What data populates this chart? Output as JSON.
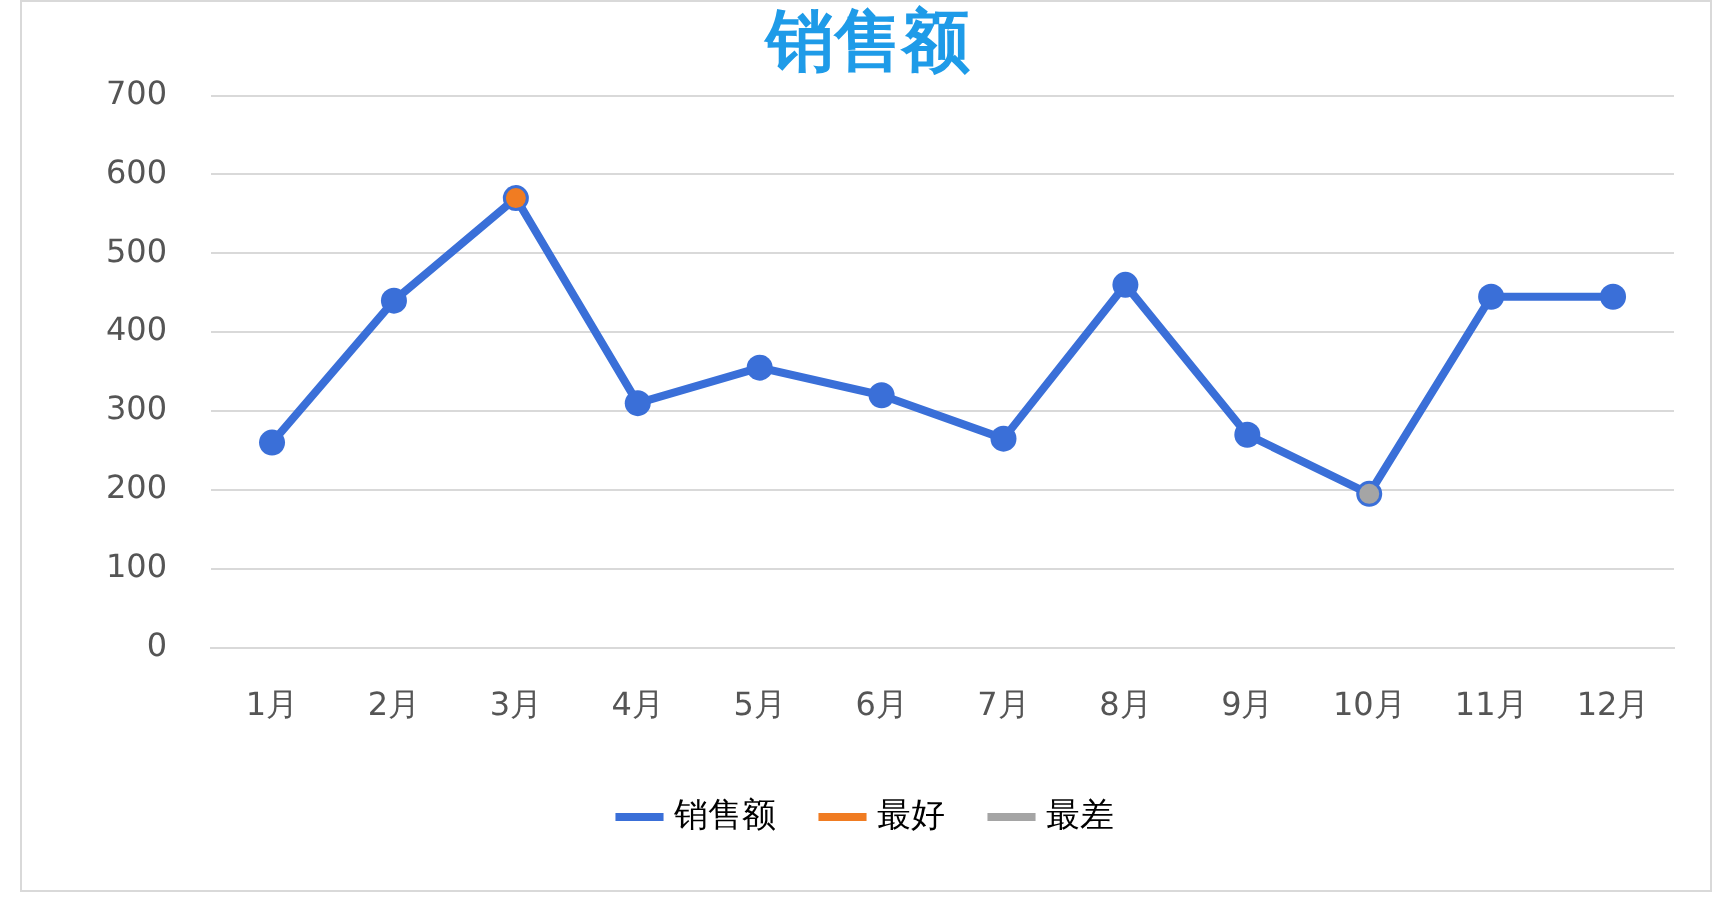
{
  "chart_data": {
    "type": "line",
    "title": "销售额",
    "categories": [
      "1月",
      "2月",
      "3月",
      "4月",
      "5月",
      "6月",
      "7月",
      "8月",
      "9月",
      "10月",
      "11月",
      "12月"
    ],
    "series": [
      {
        "name": "销售额",
        "color": "#3a6fd8",
        "values": [
          260,
          440,
          570,
          310,
          355,
          320,
          265,
          460,
          270,
          195,
          445,
          445
        ]
      },
      {
        "name": "最好",
        "color": "#f07c22",
        "values": [
          null,
          null,
          570,
          null,
          null,
          null,
          null,
          null,
          null,
          null,
          null,
          null
        ]
      },
      {
        "name": "最差",
        "color": "#a5a5a5",
        "values": [
          null,
          null,
          null,
          null,
          null,
          null,
          null,
          null,
          null,
          195,
          null,
          null
        ]
      }
    ],
    "ylim": [
      0,
      700
    ],
    "yticks": [
      0,
      100,
      200,
      300,
      400,
      500,
      600,
      700
    ],
    "grid": "y",
    "legend": "bottom",
    "marker": "circle",
    "line_style": "solid"
  }
}
